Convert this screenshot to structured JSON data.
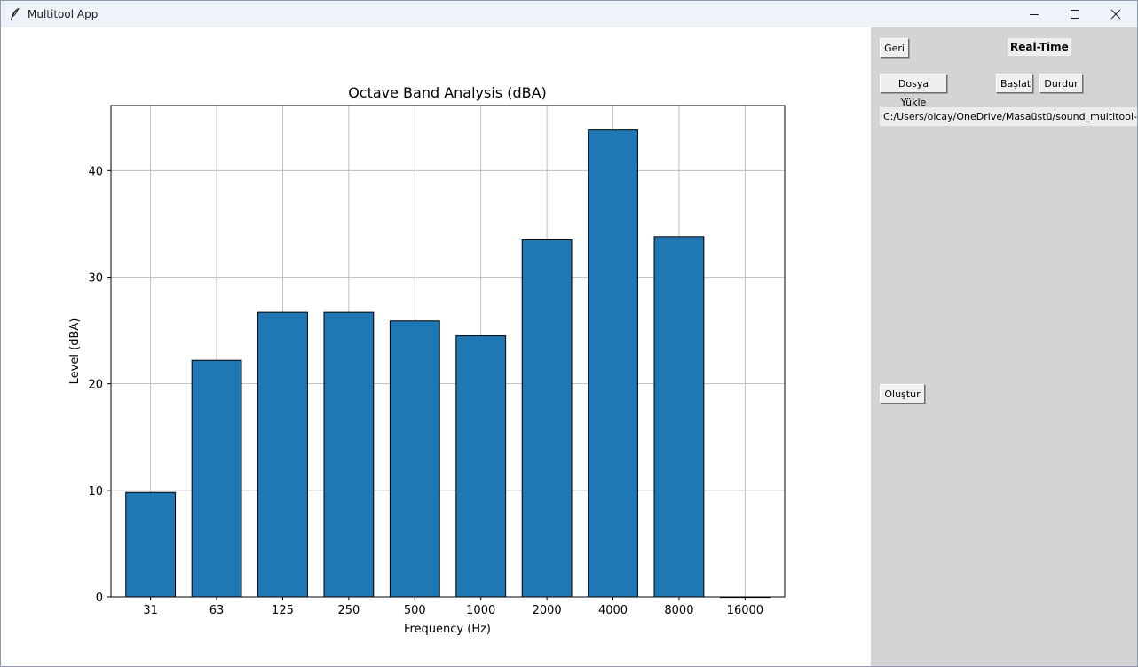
{
  "window": {
    "title": "Multitool App",
    "minimize_icon": "minimize-icon",
    "maximize_icon": "maximize-icon",
    "close_icon": "close-icon"
  },
  "side_panel": {
    "back_label": "Geri",
    "mode_label": "Real-Time",
    "load_file_label": "Dosya Yükle",
    "start_label": "Başlat",
    "stop_label": "Durdur",
    "file_path": "C:/Users/olcay/OneDrive/Masaüstü/sound_multitool-main",
    "create_label": "Oluştur",
    "background_color": "#d4d4d4"
  },
  "chart_data": {
    "type": "bar",
    "title": "Octave Band Analysis (dBA)",
    "xlabel": "Frequency (Hz)",
    "ylabel": "Level (dBA)",
    "categories": [
      "31",
      "63",
      "125",
      "250",
      "500",
      "1000",
      "2000",
      "4000",
      "8000",
      "16000"
    ],
    "values": [
      9.8,
      22.2,
      26.7,
      26.7,
      25.9,
      24.5,
      33.5,
      43.8,
      33.8,
      0.0
    ],
    "yticks": [
      0,
      10,
      20,
      30,
      40
    ],
    "ylim": [
      0,
      46.1
    ],
    "grid": true,
    "bar_color": "#1f77b4",
    "edge_color": "#000000"
  }
}
